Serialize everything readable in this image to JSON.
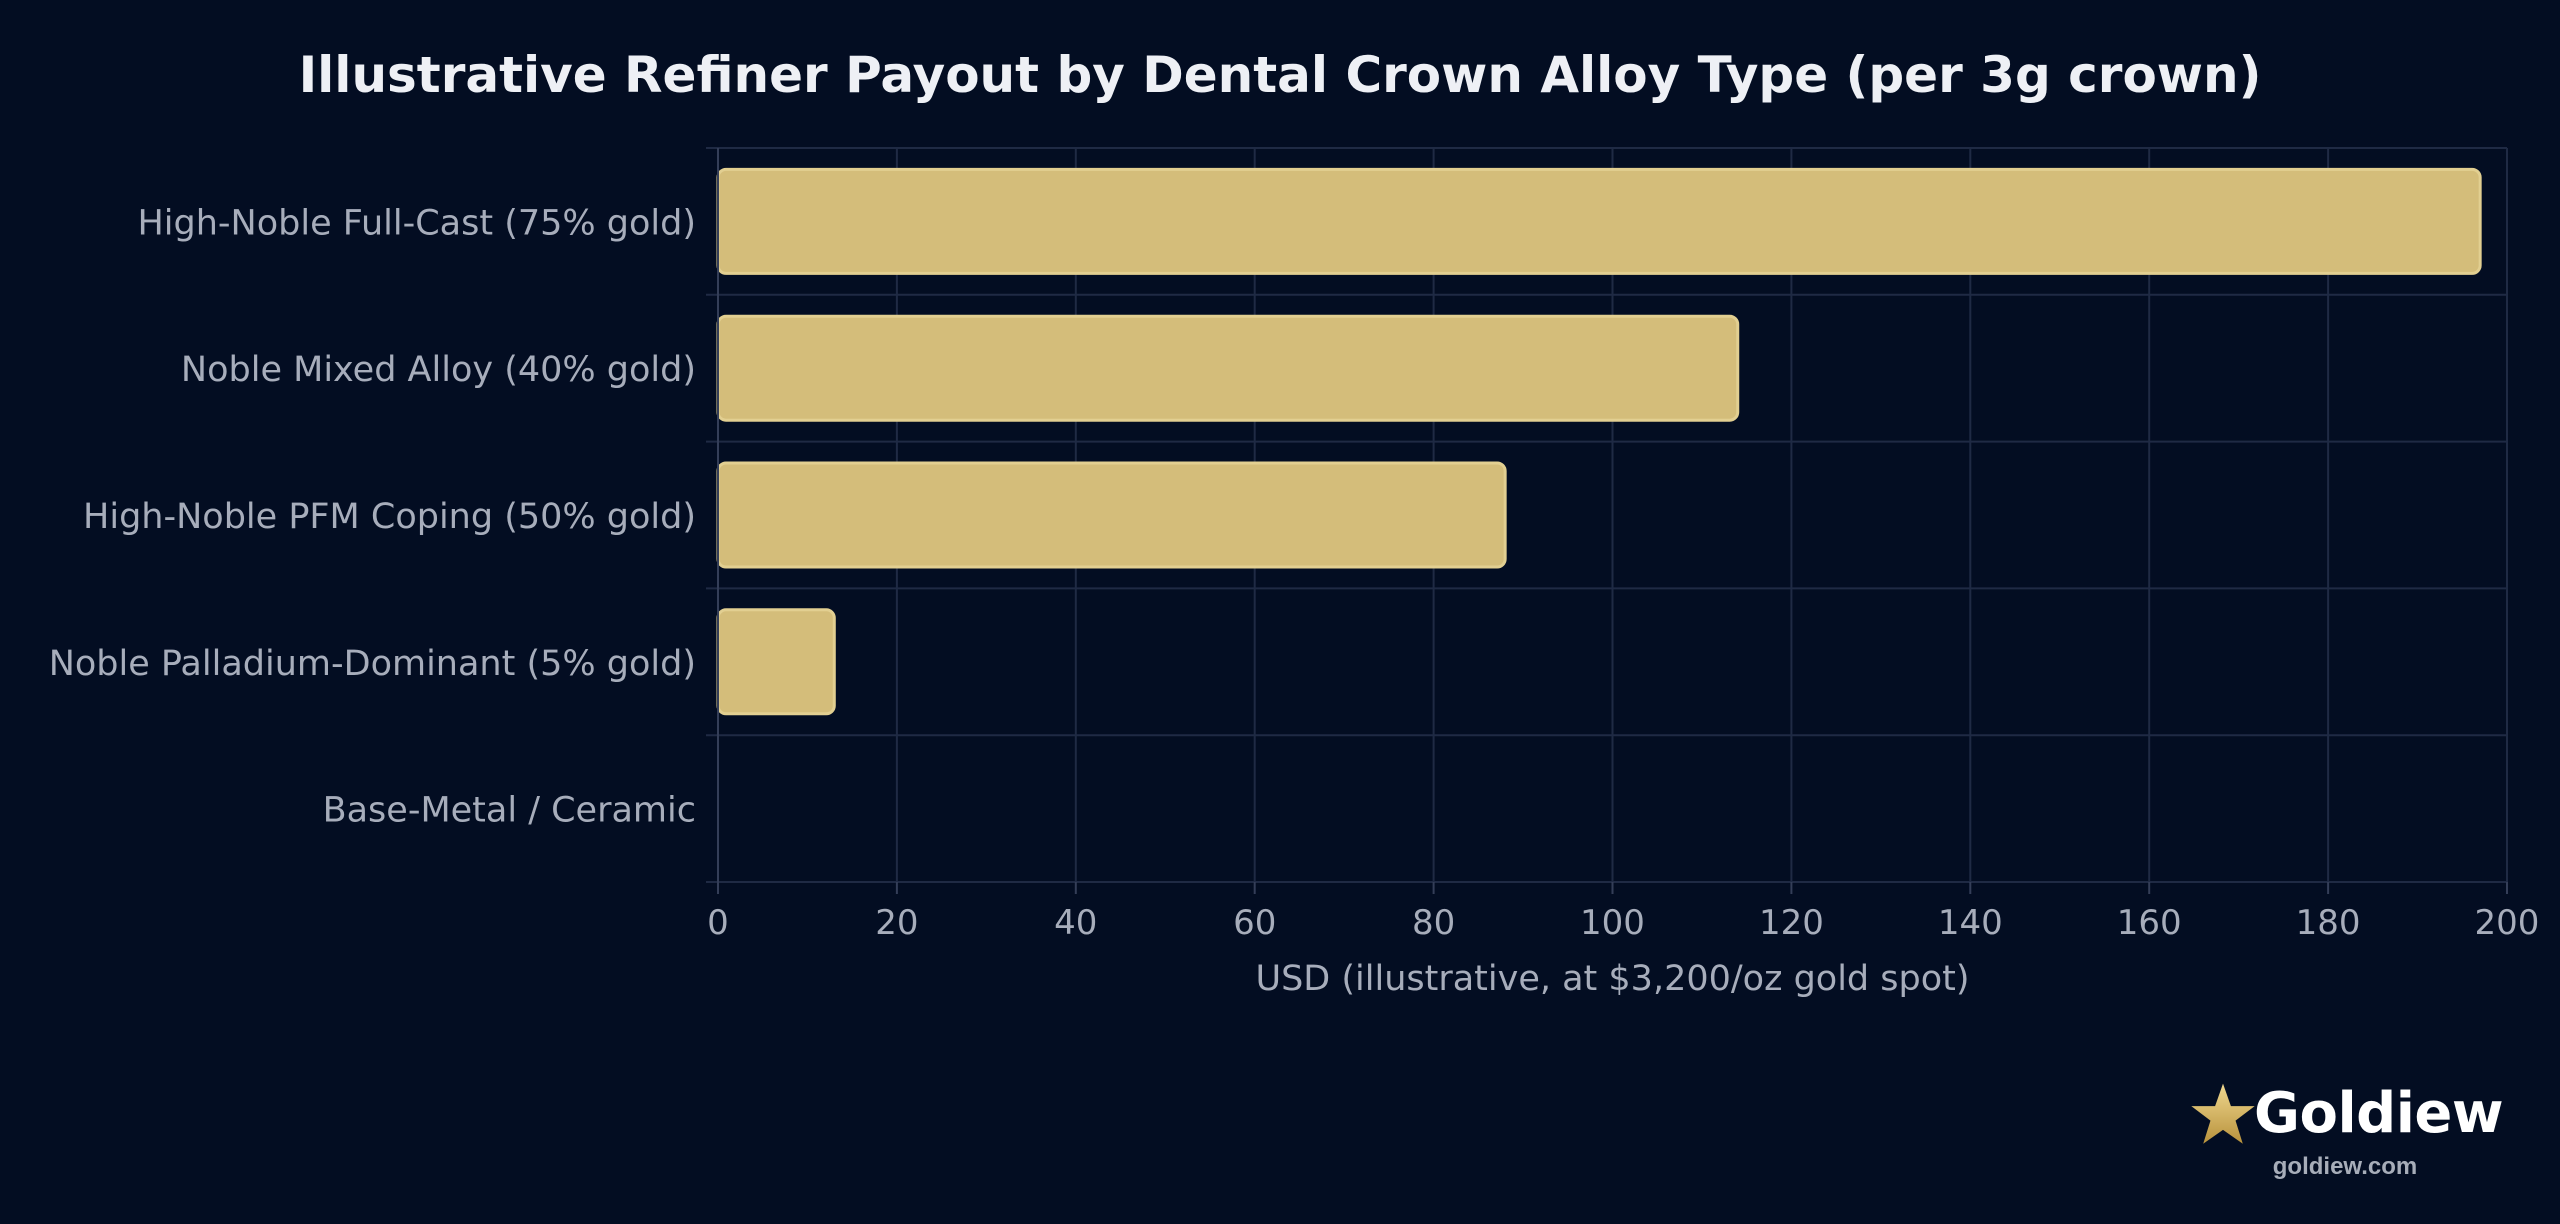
{
  "chart_data": {
    "type": "bar",
    "orientation": "horizontal",
    "title": "Illustrative Refiner Payout by Dental Crown Alloy Type (per 3g crown)",
    "xlabel": "USD (illustrative, at $3,200/oz gold spot)",
    "ylabel": "",
    "categories": [
      "High-Noble Full-Cast (75% gold)",
      "Noble Mixed Alloy (40% gold)",
      "High-Noble PFM Coping (50% gold)",
      "Noble Palladium-Dominant (5% gold)",
      "Base-Metal / Ceramic"
    ],
    "values": [
      197,
      114,
      88,
      13,
      0
    ],
    "xlim": [
      0,
      200
    ],
    "xticks": [
      0,
      20,
      40,
      60,
      80,
      100,
      120,
      140,
      160,
      180,
      200
    ],
    "grid": true,
    "legend": "none",
    "colors": {
      "background": "#030d22",
      "bar_fill": "#d4bd7a",
      "bar_stroke": "#e2cf91",
      "grid": "#1f2a44",
      "axis": "#343e58",
      "label_text": "#a7adbb",
      "title_text": "#eef0f5"
    }
  },
  "brand": {
    "icon": "star-icon",
    "name": "Goldiew",
    "url": "goldiew.com",
    "star_color": "#d4b25a"
  }
}
